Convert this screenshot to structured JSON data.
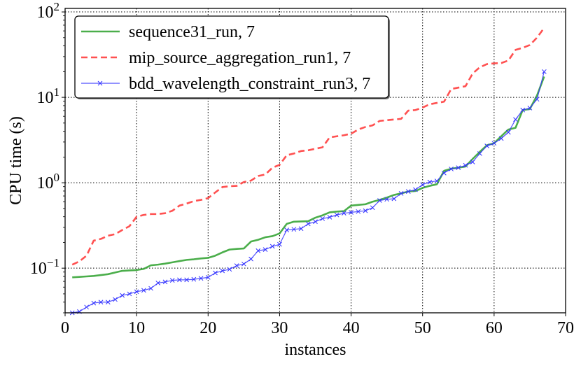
{
  "chart_data": {
    "type": "line",
    "xlabel": "instances",
    "ylabel": "CPU time (s)",
    "xlim": [
      0,
      70
    ],
    "ylim": [
      0.03,
      110
    ],
    "yscale": "log",
    "x_ticks": [
      0,
      10,
      20,
      30,
      40,
      50,
      60,
      70
    ],
    "y_ticks": [
      {
        "value": 0.1,
        "base": "10",
        "exp": "−1"
      },
      {
        "value": 1,
        "base": "10",
        "exp": "0"
      },
      {
        "value": 10,
        "base": "10",
        "exp": "1"
      },
      {
        "value": 100,
        "base": "10",
        "exp": "2"
      }
    ],
    "grid": true,
    "legend_position": "top-left",
    "series": [
      {
        "name": "sequence31_run, 7",
        "color": "#2ca02c",
        "style": "solid",
        "marker": "none",
        "x": [
          1,
          2,
          3,
          4,
          5,
          6,
          7,
          8,
          9,
          10,
          11,
          12,
          13,
          14,
          15,
          16,
          17,
          18,
          19,
          20,
          21,
          22,
          23,
          24,
          25,
          26,
          27,
          28,
          29,
          30,
          31,
          32,
          33,
          34,
          35,
          36,
          37,
          38,
          39,
          40,
          41,
          42,
          43,
          44,
          45,
          46,
          47,
          48,
          49,
          50,
          51,
          52,
          53,
          54,
          55,
          56,
          57,
          58,
          59,
          60,
          61,
          62,
          63,
          64,
          65,
          66,
          67
        ],
        "y": [
          0.078,
          0.079,
          0.08,
          0.081,
          0.083,
          0.085,
          0.089,
          0.093,
          0.094,
          0.095,
          0.098,
          0.108,
          0.11,
          0.113,
          0.117,
          0.121,
          0.125,
          0.127,
          0.13,
          0.132,
          0.14,
          0.153,
          0.165,
          0.168,
          0.17,
          0.205,
          0.215,
          0.23,
          0.237,
          0.255,
          0.33,
          0.35,
          0.352,
          0.355,
          0.39,
          0.415,
          0.45,
          0.46,
          0.465,
          0.54,
          0.55,
          0.56,
          0.6,
          0.63,
          0.67,
          0.72,
          0.75,
          0.79,
          0.8,
          0.87,
          0.92,
          0.96,
          1.38,
          1.46,
          1.5,
          1.55,
          1.9,
          2.3,
          2.75,
          2.9,
          3.5,
          4.2,
          4.4,
          7.1,
          7.3,
          10.5,
          17.5
        ]
      },
      {
        "name": "mip_source_aggregation_run1, 7",
        "color": "#ff3333",
        "style": "dashed",
        "marker": "none",
        "x": [
          1,
          2,
          3,
          4,
          5,
          6,
          7,
          8,
          9,
          10,
          11,
          12,
          13,
          14,
          15,
          16,
          17,
          18,
          19,
          20,
          21,
          22,
          23,
          24,
          25,
          26,
          27,
          28,
          29,
          30,
          31,
          32,
          33,
          34,
          35,
          36,
          37,
          38,
          39,
          40,
          41,
          42,
          43,
          44,
          45,
          46,
          47,
          48,
          49,
          50,
          51,
          52,
          53,
          54,
          55,
          56,
          57,
          58,
          59,
          60,
          61,
          62,
          63,
          64,
          65,
          66,
          67
        ],
        "y": [
          0.11,
          0.12,
          0.14,
          0.21,
          0.22,
          0.24,
          0.25,
          0.28,
          0.31,
          0.4,
          0.42,
          0.43,
          0.43,
          0.44,
          0.47,
          0.54,
          0.57,
          0.61,
          0.63,
          0.66,
          0.77,
          0.89,
          0.91,
          0.92,
          1.02,
          1.06,
          1.2,
          1.25,
          1.5,
          1.62,
          2.1,
          2.2,
          2.35,
          2.4,
          2.5,
          2.6,
          3.4,
          3.5,
          3.6,
          3.75,
          4.2,
          4.5,
          4.7,
          5.3,
          5.4,
          5.5,
          5.6,
          7.0,
          7.1,
          7.6,
          8.3,
          8.6,
          8.9,
          12.5,
          13.0,
          13.5,
          19.0,
          22.5,
          24.5,
          25.0,
          25.2,
          27.0,
          36.0,
          38.0,
          41.0,
          50.0,
          65.0
        ]
      },
      {
        "name": "bdd_wavelength_constraint_run3, 7",
        "color": "#3333ff",
        "style": "solid",
        "marker": "x",
        "x": [
          1,
          2,
          3,
          4,
          5,
          6,
          7,
          8,
          9,
          10,
          11,
          12,
          13,
          14,
          15,
          16,
          17,
          18,
          19,
          20,
          21,
          22,
          23,
          24,
          25,
          26,
          27,
          28,
          29,
          30,
          31,
          32,
          33,
          34,
          35,
          36,
          37,
          38,
          39,
          40,
          41,
          42,
          43,
          44,
          45,
          46,
          47,
          48,
          49,
          50,
          51,
          52,
          53,
          54,
          55,
          56,
          57,
          58,
          59,
          60,
          61,
          62,
          63,
          64,
          65,
          66,
          67
        ],
        "y": [
          0.03,
          0.031,
          0.035,
          0.039,
          0.04,
          0.04,
          0.043,
          0.048,
          0.05,
          0.053,
          0.055,
          0.058,
          0.067,
          0.069,
          0.072,
          0.073,
          0.073,
          0.074,
          0.076,
          0.078,
          0.088,
          0.093,
          0.097,
          0.107,
          0.112,
          0.128,
          0.16,
          0.165,
          0.18,
          0.19,
          0.28,
          0.285,
          0.29,
          0.33,
          0.35,
          0.38,
          0.395,
          0.42,
          0.44,
          0.45,
          0.46,
          0.47,
          0.51,
          0.62,
          0.64,
          0.65,
          0.75,
          0.79,
          0.83,
          0.95,
          1.02,
          1.05,
          1.3,
          1.45,
          1.5,
          1.6,
          1.75,
          2.2,
          2.7,
          2.9,
          3.3,
          3.9,
          5.5,
          7.1,
          7.5,
          9.5,
          20.0
        ]
      }
    ]
  }
}
